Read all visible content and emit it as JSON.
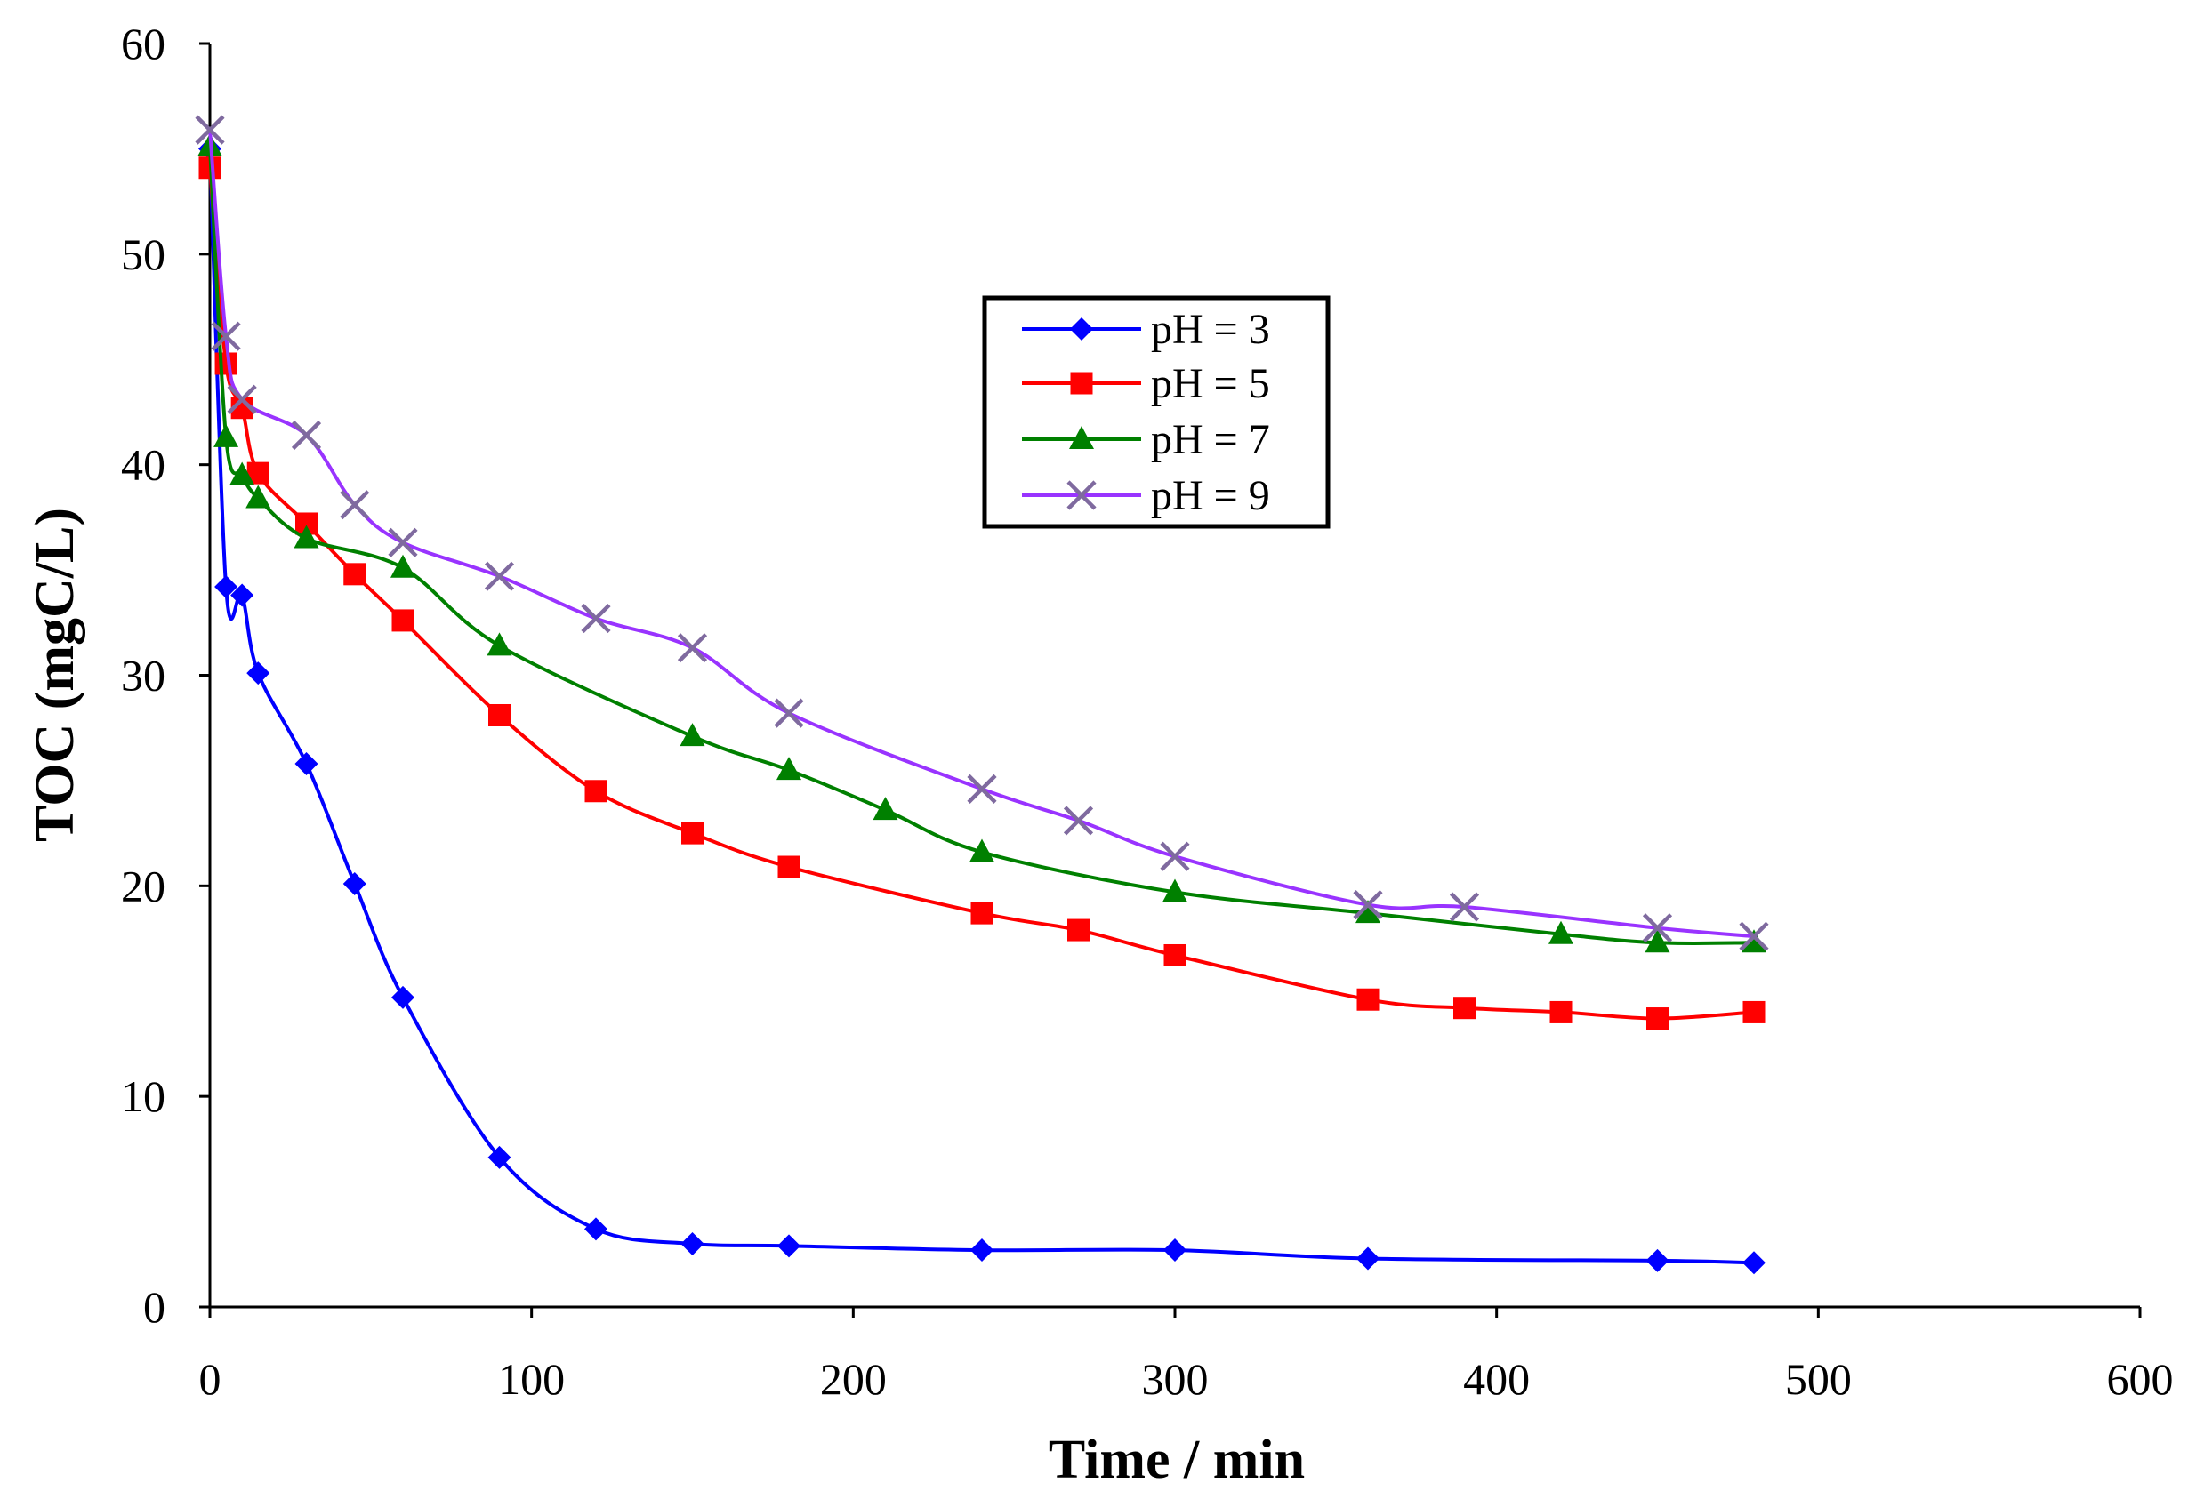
{
  "chart_data": {
    "type": "line",
    "title": "",
    "xlabel": "Time / min",
    "ylabel": "TOC (mgC/L)",
    "xlim": [
      0,
      600
    ],
    "ylim": [
      0,
      60
    ],
    "xticks": [
      0,
      100,
      200,
      300,
      400,
      500,
      600
    ],
    "yticks": [
      0,
      10,
      20,
      30,
      40,
      50,
      60
    ],
    "xtick_labels": [
      "0",
      "100",
      "200",
      "300",
      "400",
      "500",
      "600"
    ],
    "ytick_labels": [
      "0",
      "10",
      "20",
      "30",
      "40",
      "50",
      "60"
    ],
    "grid": false,
    "legend": "upper-center-right, boxed",
    "series": [
      {
        "name": "pH = 3",
        "color": "#0000FF",
        "marker": "diamond",
        "x": [
          0,
          5,
          10,
          15,
          30,
          45,
          60,
          90,
          120,
          150,
          180,
          240,
          300,
          360,
          450,
          480
        ],
        "y": [
          55.0,
          34.2,
          33.8,
          30.1,
          25.8,
          20.1,
          14.7,
          7.1,
          3.7,
          3.0,
          2.9,
          2.7,
          2.7,
          2.3,
          2.2,
          2.1
        ]
      },
      {
        "name": "pH = 5",
        "color": "#FF0000",
        "marker": "square",
        "x": [
          0,
          5,
          10,
          15,
          30,
          45,
          60,
          90,
          120,
          150,
          180,
          240,
          270,
          300,
          360,
          390,
          420,
          450,
          480
        ],
        "y": [
          54.1,
          44.8,
          42.7,
          39.6,
          37.2,
          34.8,
          32.6,
          28.1,
          24.5,
          22.5,
          20.9,
          18.7,
          17.9,
          16.7,
          14.6,
          14.2,
          14.0,
          13.7,
          14.0
        ]
      },
      {
        "name": "pH = 7",
        "color": "#008000",
        "marker": "triangle",
        "x": [
          0,
          5,
          10,
          15,
          30,
          60,
          90,
          150,
          180,
          210,
          240,
          300,
          360,
          420,
          450,
          480
        ],
        "y": [
          55.1,
          41.3,
          39.5,
          38.4,
          36.5,
          35.1,
          31.4,
          27.1,
          25.5,
          23.6,
          21.6,
          19.7,
          18.7,
          17.7,
          17.3,
          17.3
        ]
      },
      {
        "name": "pH = 9",
        "color": "#9933FF",
        "marker_color": "#7F6A9F",
        "marker": "x",
        "x": [
          0,
          5,
          10,
          30,
          45,
          60,
          90,
          120,
          150,
          180,
          240,
          270,
          300,
          360,
          390,
          450,
          480
        ],
        "y": [
          55.9,
          46.1,
          43.1,
          41.4,
          38.1,
          36.3,
          34.7,
          32.7,
          31.3,
          28.2,
          24.6,
          23.1,
          21.4,
          19.1,
          19.0,
          18.0,
          17.6
        ]
      }
    ]
  }
}
